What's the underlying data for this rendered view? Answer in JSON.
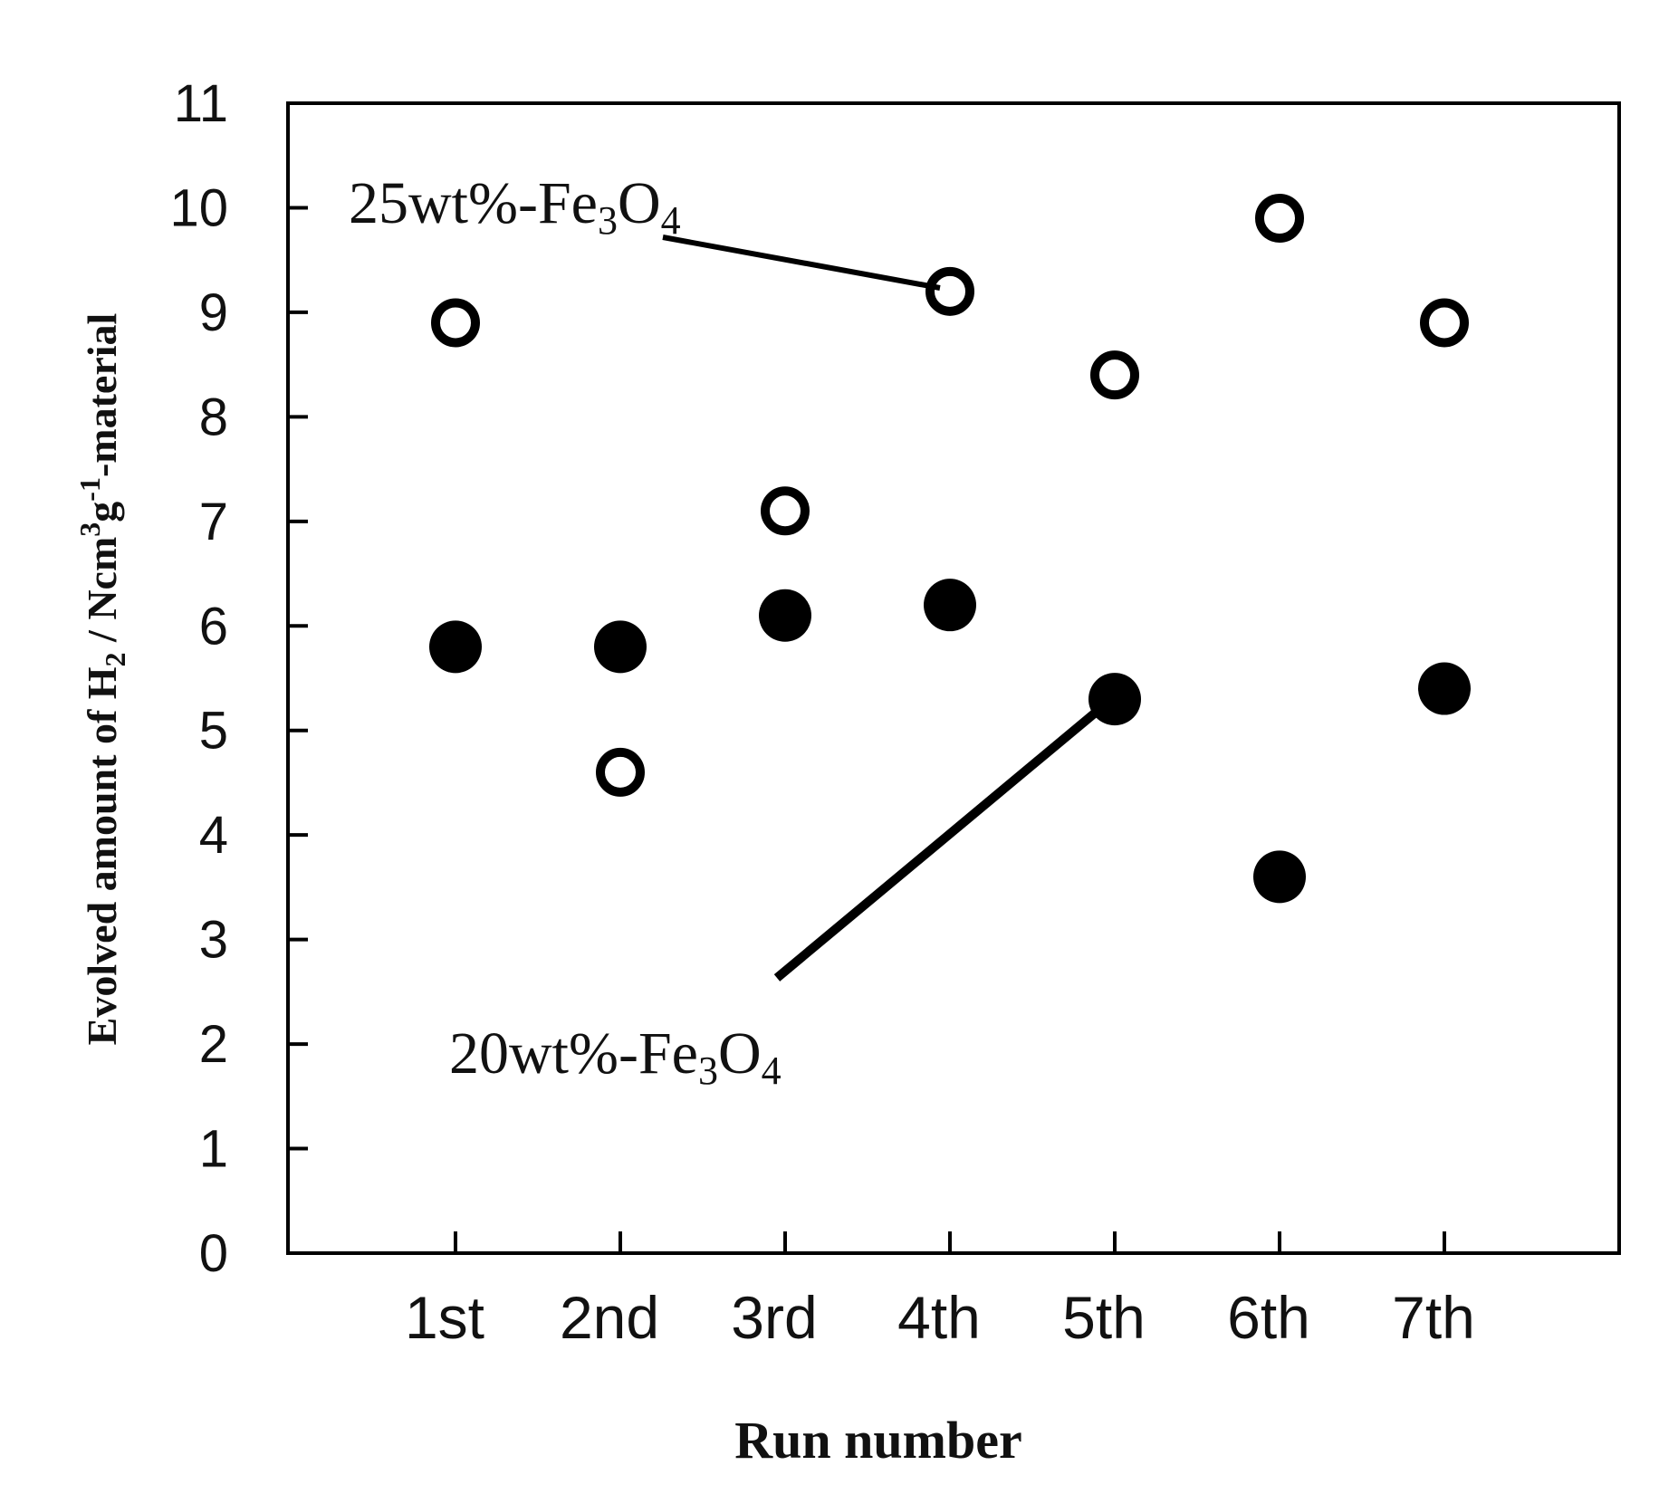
{
  "chart_data": {
    "type": "scatter",
    "xlabel": "Run number",
    "ylabel": {
      "prefix": "Evolved amount of H",
      "sub1": "2",
      "mid1": " / Ncm",
      "sup1": "3",
      "mid2": "g",
      "sup2": "-1",
      "suffix": "-material"
    },
    "categories": [
      "1st",
      "2nd",
      "3rd",
      "4th",
      "5th",
      "6th",
      "7th"
    ],
    "ylim": [
      0,
      11
    ],
    "yticks": [
      "0",
      "1",
      "2",
      "3",
      "4",
      "5",
      "6",
      "7",
      "8",
      "9",
      "10",
      "11"
    ],
    "grid": false,
    "series": [
      {
        "key": "s25",
        "label_parts": {
          "a": "25wt%-Fe",
          "b": "3",
          "c": "O",
          "d": "4"
        },
        "marker": "open-circle",
        "values": [
          8.9,
          4.6,
          7.1,
          9.2,
          8.4,
          9.9,
          8.9
        ]
      },
      {
        "key": "s20",
        "label_parts": {
          "a": "20wt%-Fe",
          "b": "3",
          "c": "O",
          "d": "4"
        },
        "marker": "filled-circle",
        "values": [
          5.8,
          5.8,
          6.1,
          6.2,
          5.3,
          3.6,
          5.4
        ]
      }
    ],
    "colors": {
      "marker": "#000000",
      "background": "#ffffff"
    }
  }
}
